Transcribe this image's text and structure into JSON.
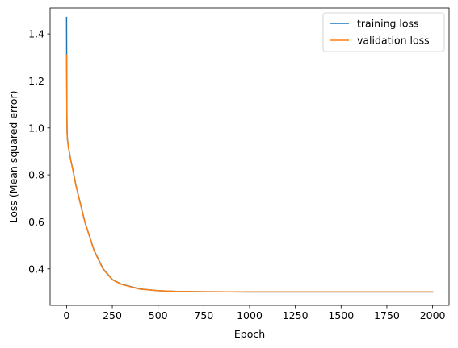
{
  "chart_data": {
    "type": "line",
    "title": "",
    "xlabel": "Epoch",
    "ylabel": "Loss (Mean squared error)",
    "xlim": [
      -90,
      2090
    ],
    "ylim": [
      0.245,
      1.51
    ],
    "xticks": [
      0,
      250,
      500,
      750,
      1000,
      1250,
      1500,
      1750,
      2000
    ],
    "xtick_labels": [
      "0",
      "250",
      "500",
      "750",
      "1000",
      "1250",
      "1500",
      "1750",
      "2000"
    ],
    "yticks": [
      0.4,
      0.6,
      0.8,
      1.0,
      1.2,
      1.4
    ],
    "ytick_labels": [
      "0.4",
      "0.6",
      "0.8",
      "1.0",
      "1.2",
      "1.4"
    ],
    "grid": false,
    "legend_position": "top-right",
    "series": [
      {
        "name": "training loss",
        "color": "#1f77b4",
        "x": [
          0,
          1,
          2,
          3,
          5,
          10,
          20,
          35,
          50,
          75,
          100,
          150,
          200,
          250,
          300,
          400,
          500,
          600,
          750,
          1000,
          1250,
          1500,
          1750,
          2000
        ],
        "y": [
          1.47,
          1.2,
          1.05,
          0.98,
          0.95,
          0.92,
          0.875,
          0.82,
          0.76,
          0.68,
          0.6,
          0.48,
          0.4,
          0.355,
          0.335,
          0.315,
          0.307,
          0.304,
          0.303,
          0.302,
          0.302,
          0.302,
          0.302,
          0.302
        ]
      },
      {
        "name": "validation loss",
        "color": "#ff7f0e",
        "x": [
          0,
          1,
          2,
          3,
          5,
          10,
          20,
          35,
          50,
          75,
          100,
          150,
          200,
          250,
          300,
          400,
          500,
          600,
          750,
          1000,
          1250,
          1500,
          1750,
          2000
        ],
        "y": [
          1.31,
          1.15,
          1.03,
          0.975,
          0.948,
          0.918,
          0.873,
          0.818,
          0.758,
          0.678,
          0.598,
          0.478,
          0.398,
          0.354,
          0.334,
          0.314,
          0.307,
          0.304,
          0.303,
          0.302,
          0.302,
          0.302,
          0.302,
          0.302
        ]
      }
    ]
  }
}
